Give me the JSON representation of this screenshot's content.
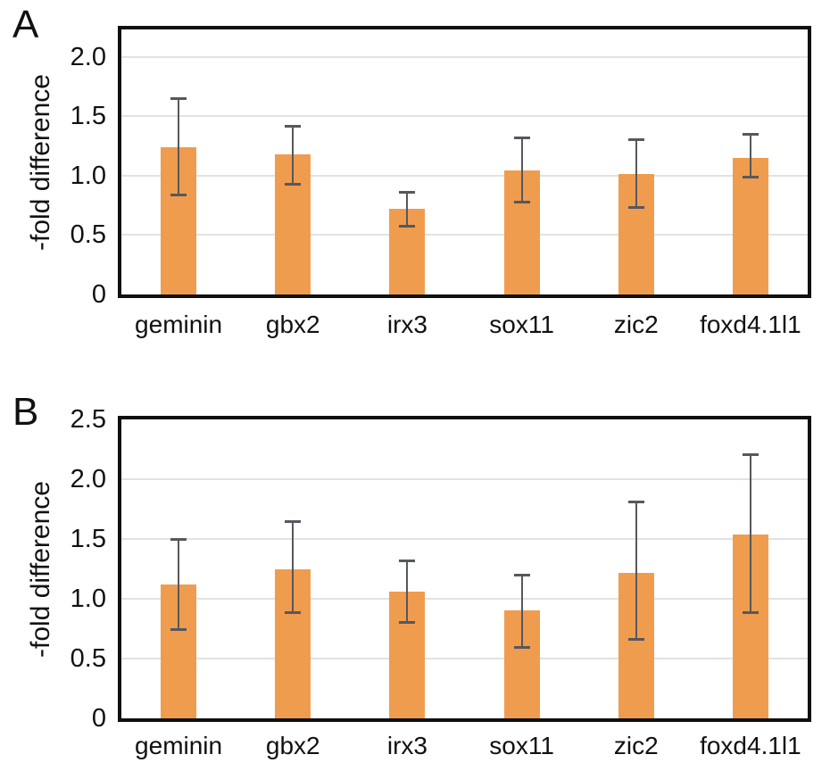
{
  "figure": {
    "background_color": "#ffffff",
    "text_color": "#111111"
  },
  "chart_data": [
    {
      "type": "bar",
      "panel_letter": "A",
      "title": "",
      "xlabel": "",
      "ylabel": "-fold difference",
      "categories": [
        "geminin",
        "gbx2",
        "irx3",
        "sox11",
        "zic2",
        "foxd4.1l1"
      ],
      "values": [
        1.24,
        1.18,
        0.72,
        1.04,
        1.01,
        1.15
      ],
      "error_low": [
        0.83,
        0.92,
        0.57,
        0.77,
        0.73,
        0.98
      ],
      "error_high": [
        1.65,
        1.42,
        0.86,
        1.32,
        1.31,
        1.35
      ],
      "ytick_values": [
        0,
        0.5,
        1,
        1.5,
        2
      ],
      "ytick_labels": [
        "0",
        "0.5",
        "1.0",
        "1.5",
        "2.0"
      ],
      "ylim": [
        0,
        2.23
      ],
      "grid": true,
      "legend": "none",
      "bar_color": "#F09C4E",
      "error_color": "#55585E",
      "grid_color": "#E2E2E2",
      "frame_color": "#101010"
    },
    {
      "type": "bar",
      "panel_letter": "B",
      "title": "",
      "xlabel": "",
      "ylabel": "-fold difference",
      "categories": [
        "geminin",
        "gbx2",
        "irx3",
        "sox11",
        "zic2",
        "foxd4.1l1"
      ],
      "values": [
        1.12,
        1.25,
        1.06,
        0.9,
        1.22,
        1.54
      ],
      "error_low": [
        0.74,
        0.88,
        0.8,
        0.59,
        0.66,
        0.88
      ],
      "error_high": [
        1.5,
        1.65,
        1.32,
        1.2,
        1.81,
        2.21
      ],
      "ytick_values": [
        0,
        0.5,
        1,
        1.5,
        2,
        2.5
      ],
      "ytick_labels": [
        "0",
        "0.5",
        "1.0",
        "1.5",
        "2.0",
        "2.5"
      ],
      "ylim": [
        0,
        2.5
      ],
      "grid": true,
      "legend": "none",
      "bar_color": "#F09C4E",
      "error_color": "#55585E",
      "grid_color": "#E2E2E2",
      "frame_color": "#101010"
    }
  ]
}
